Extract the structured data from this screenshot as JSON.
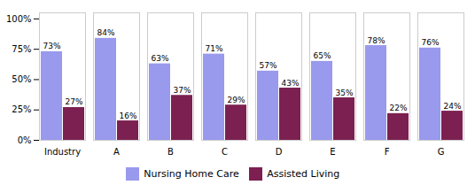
{
  "chart_data": {
    "type": "bar",
    "categories": [
      "Industry",
      "A",
      "B",
      "C",
      "D",
      "E",
      "F",
      "G"
    ],
    "series": [
      {
        "name": "Nursing Home Care",
        "color": "#9999EE",
        "values": [
          73,
          84,
          63,
          71,
          57,
          65,
          78,
          76
        ],
        "value_labels": [
          "73%",
          "84%",
          "63%",
          "71%",
          "57%",
          "65%",
          "78%",
          "76%"
        ]
      },
      {
        "name": "Assisted Living",
        "color": "#7B2050",
        "values": [
          27,
          16,
          37,
          29,
          43,
          35,
          22,
          24
        ],
        "value_labels": [
          "27%",
          "16%",
          "37%",
          "29%",
          "43%",
          "35%",
          "22%",
          "24%"
        ]
      }
    ],
    "ylim": [
      0,
      105
    ],
    "yticks": [
      {
        "value": 0,
        "label": "0%"
      },
      {
        "value": 25,
        "label": "25%"
      },
      {
        "value": 50,
        "label": "50%"
      },
      {
        "value": 75,
        "label": "75%"
      },
      {
        "value": 100,
        "label": "100%"
      }
    ],
    "grid": false,
    "legend": "bottom",
    "data_labels": true
  }
}
